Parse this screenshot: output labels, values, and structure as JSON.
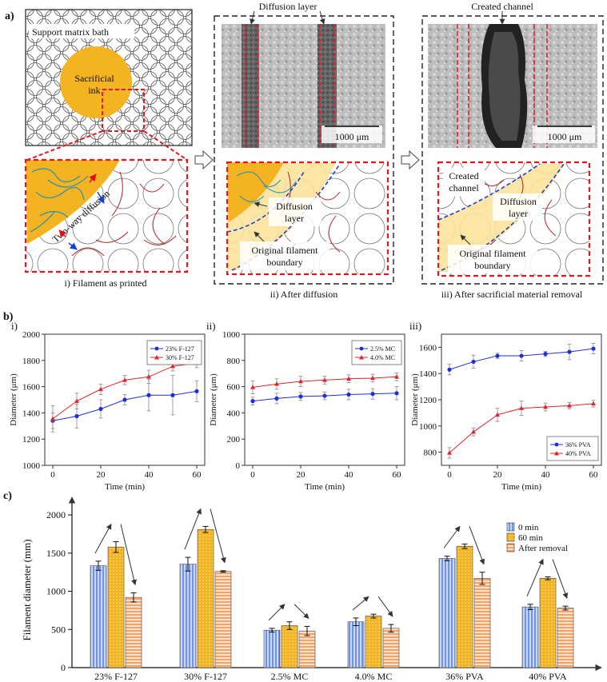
{
  "figure": {
    "panel_a": {
      "label": "a)",
      "i": {
        "support_label": "Support matrix bath",
        "ink_label_1": "Sacrificial",
        "ink_label_2": "ink",
        "arrow_label": "Two-way diffusion",
        "caption": "i) Filament as printed"
      },
      "ii": {
        "top_label": "Diffusion layer",
        "scalebar": "1000 μm",
        "layer_label_1": "Diffusion",
        "layer_label_2": "layer",
        "boundary_label_1": "Original filament",
        "boundary_label_2": "boundary",
        "caption": "ii) After diffusion"
      },
      "iii": {
        "top_label": "Created channel",
        "scalebar": "1000 μm",
        "channel_label_1": "Created",
        "channel_label_2": "channel",
        "layer_label_1": "Diffusion",
        "layer_label_2": "layer",
        "boundary_label_1": "Original filament",
        "boundary_label_2": "boundary",
        "caption": "iii) After sacrificial material removal"
      }
    },
    "panel_b_label": "b)",
    "panel_c_label": "c)",
    "colors": {
      "blue": "#1f2fd8",
      "red": "#e0242a",
      "gold": "#f4b321",
      "orange_bar": "#f6b68a",
      "blue_bar": "#a9c1f0"
    }
  },
  "chart_data": [
    {
      "type": "line",
      "panel": "i)",
      "xlabel": "Time (min)",
      "ylabel": "Diameter (μm)",
      "x": [
        0,
        10,
        20,
        30,
        40,
        50,
        60
      ],
      "xticks": [
        "0",
        "20",
        "40",
        "60"
      ],
      "ylim": [
        1000,
        2000
      ],
      "yticks": [
        "1000",
        "1200",
        "1400",
        "1600",
        "1800",
        "2000"
      ],
      "legend_position": "top-right",
      "series": [
        {
          "name": "23% F-127",
          "color": "#1f2fd8",
          "marker": "circle",
          "values": [
            1340,
            1375,
            1430,
            1500,
            1535,
            1535,
            1565
          ],
          "errors": [
            60,
            90,
            70,
            40,
            120,
            150,
            80
          ]
        },
        {
          "name": "30% F-127",
          "color": "#e0242a",
          "marker": "triangle",
          "values": [
            1355,
            1490,
            1580,
            1650,
            1675,
            1755,
            1780
          ],
          "errors": [
            100,
            60,
            40,
            35,
            50,
            35,
            35
          ]
        }
      ]
    },
    {
      "type": "line",
      "panel": "ii)",
      "xlabel": "Time (min)",
      "ylabel": "Diameter (μm)",
      "x": [
        0,
        10,
        20,
        30,
        40,
        50,
        60
      ],
      "xticks": [
        "0",
        "20",
        "40",
        "60"
      ],
      "ylim": [
        0,
        1000
      ],
      "yticks": [
        "0",
        "200",
        "400",
        "600",
        "800",
        "1000"
      ],
      "legend_position": "top-right",
      "series": [
        {
          "name": "2.5% MC",
          "color": "#1f2fd8",
          "marker": "circle",
          "values": [
            490,
            510,
            525,
            530,
            540,
            545,
            550
          ],
          "errors": [
            30,
            40,
            30,
            30,
            40,
            40,
            50
          ]
        },
        {
          "name": "4.0% MC",
          "color": "#e0242a",
          "marker": "triangle",
          "values": [
            595,
            620,
            640,
            650,
            660,
            665,
            675
          ],
          "errors": [
            50,
            40,
            40,
            30,
            30,
            30,
            30
          ]
        }
      ]
    },
    {
      "type": "line",
      "panel": "iii)",
      "xlabel": "Time (min)",
      "ylabel": "Diameter (μm)",
      "x": [
        0,
        10,
        20,
        30,
        40,
        50,
        60
      ],
      "xticks": [
        "0",
        "20",
        "40",
        "60"
      ],
      "ylim": [
        700,
        1700
      ],
      "yticks": [
        "800",
        "1000",
        "1200",
        "1400",
        "1600"
      ],
      "legend_position": "bottom-right",
      "series": [
        {
          "name": "36% PVA",
          "color": "#1f2fd8",
          "marker": "circle",
          "values": [
            1430,
            1490,
            1535,
            1535,
            1550,
            1565,
            1590
          ],
          "errors": [
            40,
            50,
            20,
            40,
            20,
            60,
            40
          ]
        },
        {
          "name": "40% PVA",
          "color": "#e0242a",
          "marker": "triangle",
          "values": [
            795,
            955,
            1085,
            1135,
            1145,
            1155,
            1170
          ],
          "errors": [
            40,
            30,
            50,
            55,
            30,
            25,
            25
          ]
        }
      ]
    },
    {
      "type": "bar",
      "panel": "c)",
      "ylabel": "Filament diameter (mm)",
      "ylim": [
        0,
        2200
      ],
      "yticks": [
        "0",
        "500",
        "1000",
        "1500",
        "2000"
      ],
      "categories": [
        "23% F-127",
        "30% F-127",
        "2.5% MC",
        "4.0% MC",
        "36% PVA",
        "40%  PVA"
      ],
      "legend_position": "top-right",
      "series": [
        {
          "name": "0 min",
          "color": "#a9c1f0",
          "values": [
            1335,
            1355,
            490,
            600,
            1430,
            795
          ],
          "errors": [
            60,
            90,
            25,
            50,
            30,
            35
          ]
        },
        {
          "name": "60 min",
          "color": "#f4b321",
          "values": [
            1580,
            1810,
            550,
            675,
            1590,
            1170
          ],
          "errors": [
            70,
            40,
            50,
            25,
            30,
            20
          ]
        },
        {
          "name": "After removal",
          "color": "#f6b68a",
          "values": [
            920,
            1260,
            480,
            515,
            1170,
            780
          ],
          "errors": [
            60,
            10,
            60,
            50,
            80,
            25
          ]
        }
      ]
    }
  ]
}
